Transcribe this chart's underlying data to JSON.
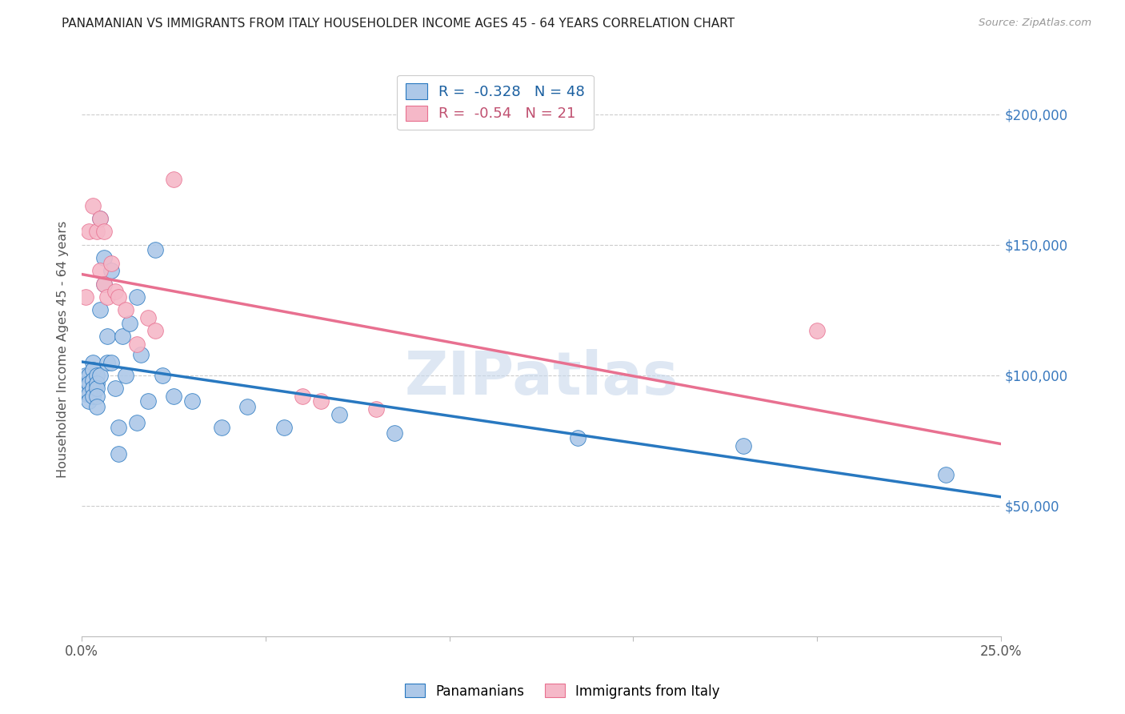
{
  "title": "PANAMANIAN VS IMMIGRANTS FROM ITALY HOUSEHOLDER INCOME AGES 45 - 64 YEARS CORRELATION CHART",
  "source": "Source: ZipAtlas.com",
  "ylabel": "Householder Income Ages 45 - 64 years",
  "ytick_labels": [
    "$50,000",
    "$100,000",
    "$150,000",
    "$200,000"
  ],
  "ytick_values": [
    50000,
    100000,
    150000,
    200000
  ],
  "ylim": [
    0,
    220000
  ],
  "xlim": [
    0.0,
    0.25
  ],
  "blue_R": -0.328,
  "blue_N": 48,
  "pink_R": -0.54,
  "pink_N": 21,
  "blue_color": "#adc8e8",
  "pink_color": "#f5b8c8",
  "blue_line_color": "#2878c0",
  "pink_line_color": "#e87090",
  "watermark": "ZIPatlas",
  "blue_scatter_x": [
    0.001,
    0.001,
    0.001,
    0.002,
    0.002,
    0.002,
    0.002,
    0.003,
    0.003,
    0.003,
    0.003,
    0.003,
    0.004,
    0.004,
    0.004,
    0.004,
    0.004,
    0.005,
    0.005,
    0.005,
    0.006,
    0.006,
    0.007,
    0.007,
    0.008,
    0.008,
    0.009,
    0.01,
    0.01,
    0.011,
    0.012,
    0.013,
    0.015,
    0.015,
    0.016,
    0.018,
    0.02,
    0.022,
    0.025,
    0.03,
    0.038,
    0.045,
    0.055,
    0.07,
    0.085,
    0.135,
    0.18,
    0.235
  ],
  "blue_scatter_y": [
    100000,
    97000,
    93000,
    100000,
    97000,
    93000,
    90000,
    105000,
    102000,
    98000,
    95000,
    92000,
    100000,
    97000,
    95000,
    92000,
    88000,
    160000,
    125000,
    100000,
    145000,
    135000,
    115000,
    105000,
    140000,
    105000,
    95000,
    80000,
    70000,
    115000,
    100000,
    120000,
    130000,
    82000,
    108000,
    90000,
    148000,
    100000,
    92000,
    90000,
    80000,
    88000,
    80000,
    85000,
    78000,
    76000,
    73000,
    62000
  ],
  "pink_scatter_x": [
    0.001,
    0.002,
    0.003,
    0.004,
    0.005,
    0.005,
    0.006,
    0.006,
    0.007,
    0.008,
    0.009,
    0.01,
    0.012,
    0.015,
    0.018,
    0.02,
    0.025,
    0.06,
    0.065,
    0.08,
    0.2
  ],
  "pink_scatter_y": [
    130000,
    155000,
    165000,
    155000,
    160000,
    140000,
    155000,
    135000,
    130000,
    143000,
    132000,
    130000,
    125000,
    112000,
    122000,
    117000,
    175000,
    92000,
    90000,
    87000,
    117000
  ],
  "blue_line_x": [
    0.001,
    0.235
  ],
  "blue_line_y_intercept": 115000,
  "blue_line_slope": -220000,
  "pink_line_x": [
    0.001,
    0.085
  ],
  "pink_line_y_intercept": 158000,
  "pink_line_slope": -900000
}
